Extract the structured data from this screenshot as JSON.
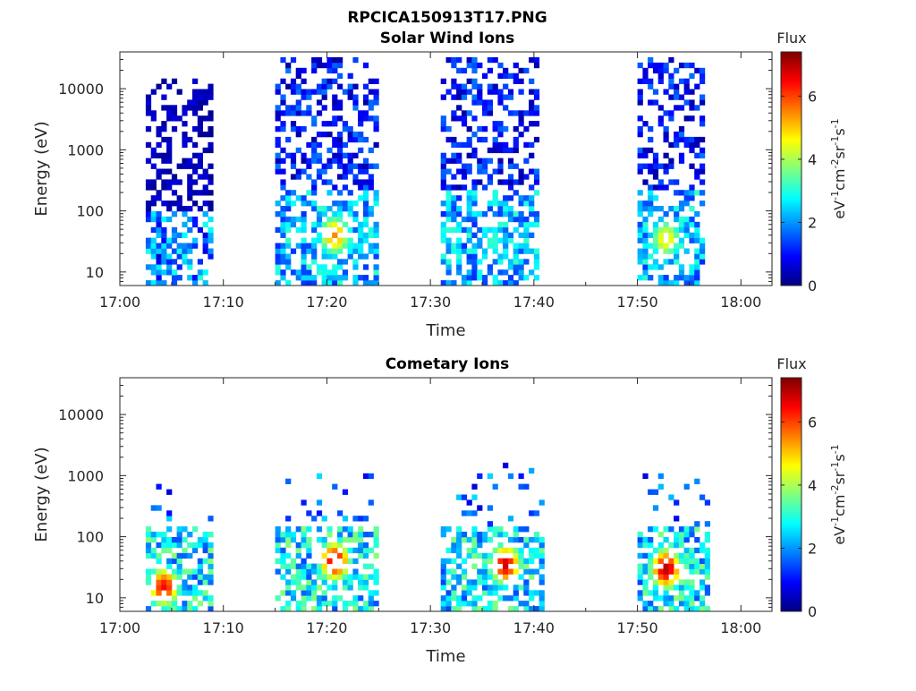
{
  "figure": {
    "title": "RPCICA150913T17.PNG"
  },
  "colorbar": {
    "title": "Flux",
    "ticks": [
      "0",
      "2",
      "4",
      "6"
    ],
    "max": 7.4,
    "colormap": "jet"
  },
  "chart_data": [
    {
      "type": "heatmap",
      "title": "Solar Wind Ions",
      "xlabel": "Time",
      "ylabel": "Energy (eV)",
      "x_ticks": [
        "17:00",
        "17:10",
        "17:20",
        "17:30",
        "17:40",
        "17:50",
        "18:00"
      ],
      "xlim": [
        "17:00",
        "18:03"
      ],
      "y_scale": "log",
      "y_ticks": [
        "10",
        "100",
        "1000",
        "10000"
      ],
      "ylim": [
        6,
        40000
      ],
      "colorbar_label": "eV-1cm-2sr-1s-1",
      "activity_bursts": [
        {
          "start": "17:02:30",
          "end": "17:09:00",
          "energy_range": [
            6,
            14000
          ],
          "peak_flux": 2.0
        },
        {
          "start": "17:15:00",
          "end": "17:25:00",
          "energy_range": [
            6,
            30000
          ],
          "peak_flux": 5.5,
          "peak_time": "17:20:30",
          "peak_energy": 40
        },
        {
          "start": "17:31:00",
          "end": "17:40:30",
          "energy_range": [
            6,
            30000
          ],
          "peak_flux": 3.2
        },
        {
          "start": "17:50:00",
          "end": "17:56:30",
          "energy_range": [
            6,
            30000
          ],
          "peak_flux": 4.8,
          "peak_time": "17:52:30",
          "peak_energy": 35
        }
      ]
    },
    {
      "type": "heatmap",
      "title": "Cometary Ions",
      "xlabel": "Time",
      "ylabel": "Energy (eV)",
      "x_ticks": [
        "17:00",
        "17:10",
        "17:20",
        "17:30",
        "17:40",
        "17:50",
        "18:00"
      ],
      "xlim": [
        "17:00",
        "18:03"
      ],
      "y_scale": "log",
      "y_ticks": [
        "10",
        "100",
        "1000",
        "10000"
      ],
      "ylim": [
        6,
        40000
      ],
      "colorbar_label": "eV-1cm-2sr-1s-1",
      "activity_bursts": [
        {
          "start": "17:02:30",
          "end": "17:09:00",
          "energy_range": [
            6,
            800
          ],
          "peak_flux": 6.5,
          "peak_time": "17:04:00",
          "peak_energy": 15
        },
        {
          "start": "17:15:00",
          "end": "17:25:00",
          "energy_range": [
            6,
            1200
          ],
          "peak_flux": 6.8,
          "peak_time": "17:20:30",
          "peak_energy": 40
        },
        {
          "start": "17:31:00",
          "end": "17:41:00",
          "energy_range": [
            6,
            1600
          ],
          "peak_flux": 6.8,
          "peak_time": "17:37:00",
          "peak_energy": 35
        },
        {
          "start": "17:50:00",
          "end": "17:57:00",
          "energy_range": [
            6,
            1200
          ],
          "peak_flux": 7.0,
          "peak_time": "17:52:30",
          "peak_energy": 30
        }
      ]
    }
  ]
}
